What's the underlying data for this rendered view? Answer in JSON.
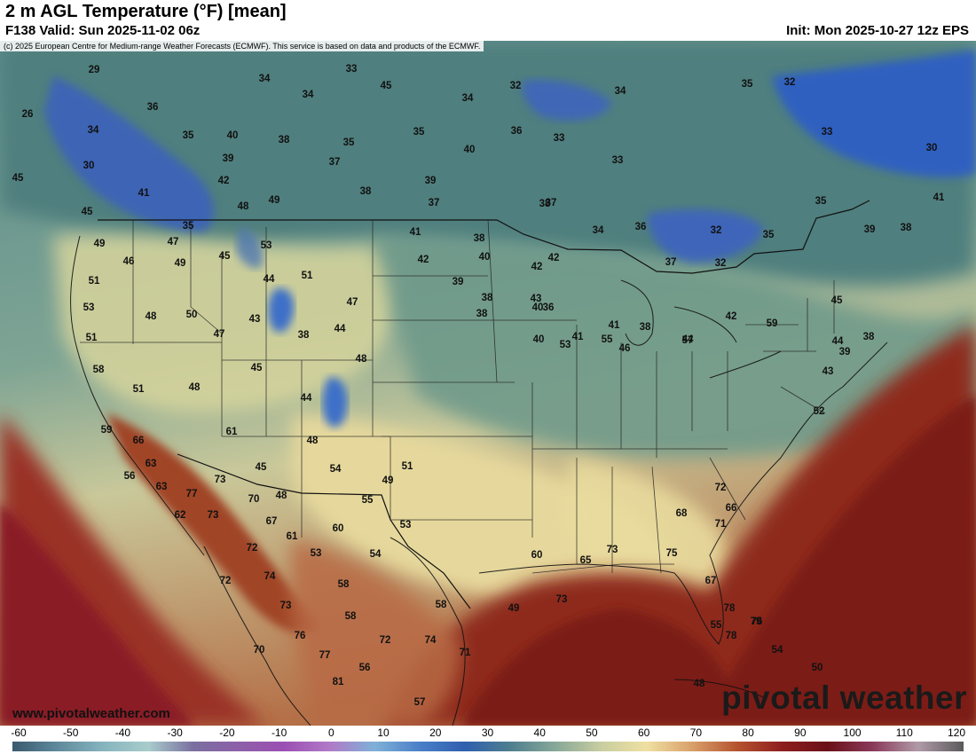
{
  "header": {
    "title": "2 m AGL Temperature (°F) [mean]",
    "valid": "F138 Valid: Sun 2025-11-02 06z",
    "init": "Init: Mon 2025-10-27 12z EPS"
  },
  "copyright": "(c) 2025 European Centre for Medium-range Weather Forecasts (ECMWF). This service is based on data and products of the ECMWF.",
  "website": "www.pivotalweather.com",
  "brand": "pivotal weather",
  "colorbar": {
    "labels": [
      "-60",
      "-50",
      "-40",
      "-30",
      "-20",
      "-10",
      "0",
      "10",
      "20",
      "30",
      "40",
      "50",
      "60",
      "70",
      "80",
      "90",
      "100",
      "110",
      "120"
    ],
    "colors": [
      "#3a5a6e",
      "#5f8a9c",
      "#86b4be",
      "#a8cccb",
      "#7a6fa0",
      "#8e5fa8",
      "#9b4fb3",
      "#b07ac7",
      "#7fb0d8",
      "#4a7fc8",
      "#2f5fae",
      "#4f7f8e",
      "#87a898",
      "#c8cda0",
      "#efe0a2",
      "#d9a06a",
      "#b5532f",
      "#8e1e1e",
      "#6a1018",
      "#8a3a5a",
      "#b09aa8",
      "#5a5a5a"
    ]
  },
  "map": {
    "temps": [
      "29",
      "26",
      "34",
      "30",
      "45",
      "36",
      "35",
      "34",
      "33",
      "34",
      "40",
      "39",
      "38",
      "35",
      "37",
      "42",
      "41",
      "45",
      "48",
      "49",
      "38",
      "49",
      "47",
      "45",
      "53",
      "51",
      "53",
      "48",
      "50",
      "47",
      "46",
      "51",
      "43",
      "44",
      "47",
      "49",
      "38",
      "44",
      "51",
      "58",
      "51",
      "48",
      "45",
      "48",
      "61",
      "44",
      "48",
      "45",
      "59",
      "66",
      "63",
      "56",
      "63",
      "77",
      "73",
      "72",
      "70",
      "54",
      "49",
      "55",
      "51",
      "48",
      "67",
      "61",
      "62",
      "73",
      "60",
      "53",
      "53",
      "72",
      "54",
      "74",
      "58",
      "73",
      "76",
      "58",
      "70",
      "77",
      "81",
      "56",
      "57",
      "32",
      "33",
      "34",
      "36",
      "35",
      "39",
      "40",
      "35",
      "41",
      "38",
      "37",
      "45",
      "37",
      "38",
      "34",
      "32",
      "33",
      "34",
      "33",
      "32",
      "35",
      "42",
      "42",
      "39",
      "30",
      "36",
      "37",
      "32",
      "35",
      "35",
      "41",
      "39",
      "38",
      "40",
      "38",
      "38",
      "42",
      "36",
      "45",
      "44",
      "43",
      "39",
      "38",
      "40",
      "41",
      "38",
      "46",
      "44",
      "42",
      "40",
      "41",
      "43",
      "53",
      "55",
      "57",
      "59",
      "52",
      "55",
      "60",
      "65",
      "73",
      "75",
      "67",
      "78",
      "79",
      "76",
      "78",
      "54",
      "50",
      "49",
      "48",
      "71",
      "68",
      "66",
      "72",
      "58",
      "72",
      "74",
      "71"
    ],
    "ocean_labels": [
      "73"
    ]
  }
}
